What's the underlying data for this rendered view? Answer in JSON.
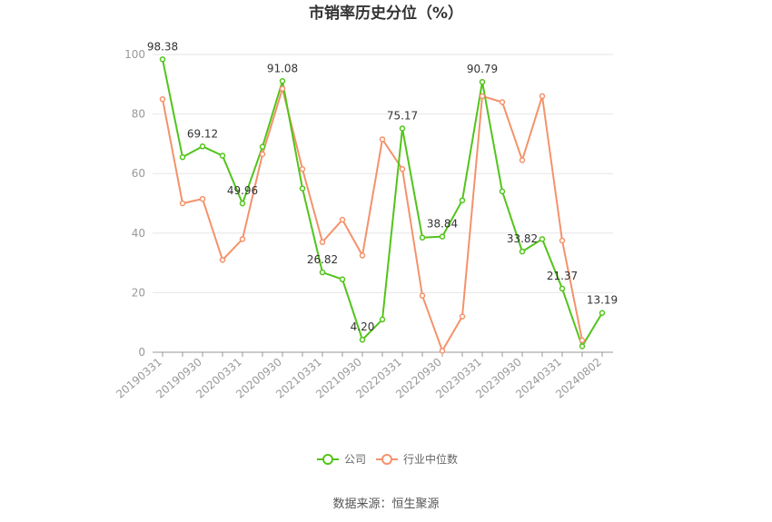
{
  "chart_data": {
    "type": "line",
    "title": "市销率历史分位（%）",
    "xlabel": "",
    "ylabel": "",
    "ylim": [
      0,
      100
    ],
    "yticks": [
      0,
      20,
      40,
      60,
      80,
      100
    ],
    "grid": true,
    "legend_position": "bottom",
    "x_tick_labels": [
      "20190331",
      "20190930",
      "20200331",
      "20200930",
      "20210331",
      "20210930",
      "20220331",
      "20220930",
      "20230331",
      "20230930",
      "20240331",
      "20240802"
    ],
    "series": [
      {
        "name": "公司",
        "color": "#52c41a",
        "values": [
          98.38,
          65.5,
          69.12,
          66.0,
          49.96,
          69.0,
          91.08,
          55.0,
          26.82,
          24.5,
          4.2,
          11.0,
          75.17,
          38.5,
          38.84,
          51.0,
          90.79,
          54.0,
          33.82,
          38.0,
          21.37,
          2.0,
          13.19
        ],
        "data_labels": [
          {
            "index": 0,
            "text": "98.38"
          },
          {
            "index": 2,
            "text": "69.12"
          },
          {
            "index": 4,
            "text": "49.96"
          },
          {
            "index": 6,
            "text": "91.08"
          },
          {
            "index": 8,
            "text": "26.82"
          },
          {
            "index": 10,
            "text": "4.20"
          },
          {
            "index": 12,
            "text": "75.17"
          },
          {
            "index": 14,
            "text": "38.84"
          },
          {
            "index": 16,
            "text": "90.79"
          },
          {
            "index": 18,
            "text": "33.82"
          },
          {
            "index": 20,
            "text": "21.37"
          },
          {
            "index": 22,
            "text": "13.19"
          }
        ]
      },
      {
        "name": "行业中位数",
        "color": "#f4926b",
        "values": [
          85.0,
          50.0,
          51.5,
          31.0,
          38.0,
          66.5,
          88.5,
          61.5,
          37.0,
          44.5,
          32.5,
          71.5,
          61.5,
          19.0,
          0.5,
          12.0,
          86.0,
          84.0,
          64.5,
          86.0,
          37.5,
          4.0,
          null
        ]
      }
    ]
  },
  "source_text": "数据来源：恒生聚源"
}
